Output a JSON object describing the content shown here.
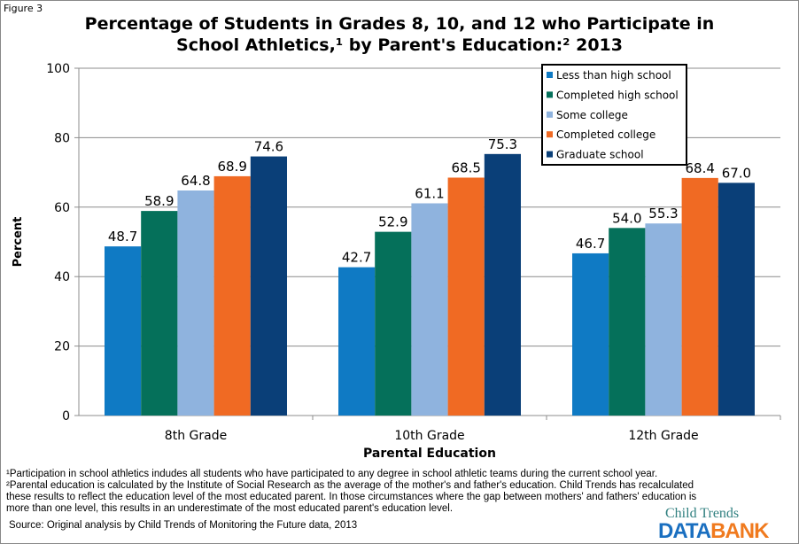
{
  "figure_label": "Figure 3",
  "chart_data": {
    "type": "bar",
    "title": "Percentage of Students in Grades 8, 10, and 12 who Participate in School Athletics,¹ by Parent's Education:² 2013",
    "title_line1": "Percentage of Students in Grades 8, 10, and 12 who Participate in",
    "title_line2": "School Athletics,¹ by Parent's Education:² 2013",
    "xlabel": "Parental Education",
    "ylabel": "Percent",
    "ylim": [
      0,
      100
    ],
    "yticks": [
      0,
      20,
      40,
      60,
      80,
      100
    ],
    "grid": true,
    "legend": "top-right",
    "categories": [
      "8th Grade",
      "10th Grade",
      "12th Grade"
    ],
    "series": [
      {
        "name": "Less than high school",
        "color": "#0f7ac4",
        "values": [
          48.7,
          42.7,
          46.7
        ]
      },
      {
        "name": "Completed high school",
        "color": "#05705a",
        "values": [
          58.9,
          52.9,
          54.0
        ]
      },
      {
        "name": "Some college",
        "color": "#8fb3de",
        "values": [
          64.8,
          61.1,
          55.3
        ]
      },
      {
        "name": "Completed college",
        "color": "#f06a23",
        "values": [
          68.9,
          68.5,
          68.4
        ]
      },
      {
        "name": "Graduate school",
        "color": "#0a3f78",
        "values": [
          74.6,
          75.3,
          67.0
        ]
      }
    ]
  },
  "footnotes": [
    "¹Participation in school athletics indudes all students who have participated to any degree in school athletic teams during the current school year.",
    "²Parental education is calculated by the Institute of Social Research as the average of the mother's and father's education.  Child Trends has recalculated these results to reflect the education level of the most educated parent.  In those circumstances where the gap between mothers' and fathers' education is more than one level, this results in an underestimate of the most educated parent's education level."
  ],
  "source": "Source: Original analysis by Child Trends of Monitoring the Future data, 2013",
  "logo": {
    "line1": "Child Trends",
    "data": "DATA",
    "bank": "BANK",
    "data_color": "#1a6fc0",
    "bank_color": "#f07a1e"
  }
}
